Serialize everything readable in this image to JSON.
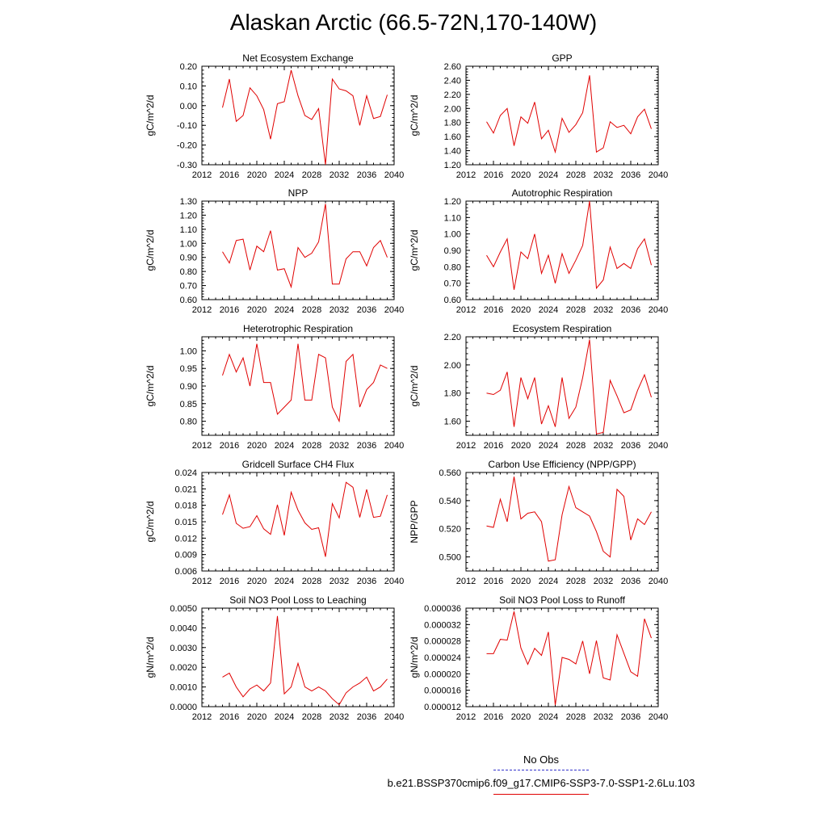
{
  "title": "Alaskan Arctic (66.5-72N,170-140W)",
  "legend": {
    "noobs_label": "No Obs",
    "run_label": "b.e21.BSSP370cmip6.f09_g17.CMIP6-SSP3-7.0-SSP1-2.6Lu.103",
    "noobs_color": "#3333cc",
    "run_color": "#e00000"
  },
  "chart_data": [
    {
      "type": "line",
      "title": "Net Ecosystem Exchange",
      "ylabel": "gC/m^2/d",
      "xlim": [
        2012,
        2040
      ],
      "ylim": [
        -0.3,
        0.2
      ],
      "xticks": [
        "2012",
        "2016",
        "2020",
        "2024",
        "2028",
        "2032",
        "2036",
        "2040"
      ],
      "yticks": [
        "-0.30",
        "-0.20",
        "-0.10",
        "0.00",
        "0.10",
        "0.20"
      ],
      "x": [
        2015,
        2016,
        2017,
        2018,
        2019,
        2020,
        2021,
        2022,
        2023,
        2024,
        2025,
        2026,
        2027,
        2028,
        2029,
        2030,
        2031,
        2032,
        2033,
        2034,
        2035,
        2036,
        2037,
        2038,
        2039
      ],
      "y": [
        -0.01,
        0.135,
        -0.08,
        -0.05,
        0.09,
        0.05,
        -0.02,
        -0.17,
        0.01,
        0.02,
        0.18,
        0.05,
        -0.05,
        -0.07,
        -0.015,
        -0.3,
        0.135,
        0.085,
        0.075,
        0.05,
        -0.1,
        0.05,
        -0.065,
        -0.055,
        0.055
      ]
    },
    {
      "type": "line",
      "title": "GPP",
      "ylabel": "gC/m^2/d",
      "xlim": [
        2012,
        2040
      ],
      "ylim": [
        1.2,
        2.6
      ],
      "xticks": [
        "2012",
        "2016",
        "2020",
        "2024",
        "2028",
        "2032",
        "2036",
        "2040"
      ],
      "yticks": [
        "1.20",
        "1.40",
        "1.60",
        "1.80",
        "2.00",
        "2.20",
        "2.40",
        "2.60"
      ],
      "x": [
        2015,
        2016,
        2017,
        2018,
        2019,
        2020,
        2021,
        2022,
        2023,
        2024,
        2025,
        2026,
        2027,
        2028,
        2029,
        2030,
        2031,
        2032,
        2033,
        2034,
        2035,
        2036,
        2037,
        2038,
        2039
      ],
      "y": [
        1.81,
        1.65,
        1.9,
        2.0,
        1.47,
        1.88,
        1.79,
        2.09,
        1.57,
        1.69,
        1.38,
        1.86,
        1.66,
        1.77,
        1.94,
        2.47,
        1.38,
        1.44,
        1.81,
        1.73,
        1.76,
        1.64,
        1.88,
        1.99,
        1.71
      ]
    },
    {
      "type": "line",
      "title": "NPP",
      "ylabel": "gC/m^2/d",
      "xlim": [
        2012,
        2040
      ],
      "ylim": [
        0.6,
        1.3
      ],
      "xticks": [
        "2012",
        "2016",
        "2020",
        "2024",
        "2028",
        "2032",
        "2036",
        "2040"
      ],
      "yticks": [
        "0.60",
        "0.70",
        "0.80",
        "0.90",
        "1.00",
        "1.10",
        "1.20",
        "1.30"
      ],
      "x": [
        2015,
        2016,
        2017,
        2018,
        2019,
        2020,
        2021,
        2022,
        2023,
        2024,
        2025,
        2026,
        2027,
        2028,
        2029,
        2030,
        2031,
        2032,
        2033,
        2034,
        2035,
        2036,
        2037,
        2038,
        2039
      ],
      "y": [
        0.94,
        0.86,
        1.02,
        1.03,
        0.81,
        0.98,
        0.94,
        1.09,
        0.81,
        0.82,
        0.69,
        0.97,
        0.9,
        0.93,
        1.01,
        1.28,
        0.71,
        0.71,
        0.89,
        0.94,
        0.94,
        0.84,
        0.97,
        1.02,
        0.9
      ]
    },
    {
      "type": "line",
      "title": "Autotrophic Respiration",
      "ylabel": "gC/m^2/d",
      "xlim": [
        2012,
        2040
      ],
      "ylim": [
        0.6,
        1.2
      ],
      "xticks": [
        "2012",
        "2016",
        "2020",
        "2024",
        "2028",
        "2032",
        "2036",
        "2040"
      ],
      "yticks": [
        "0.60",
        "0.70",
        "0.80",
        "0.90",
        "1.00",
        "1.10",
        "1.20"
      ],
      "x": [
        2015,
        2016,
        2017,
        2018,
        2019,
        2020,
        2021,
        2022,
        2023,
        2024,
        2025,
        2026,
        2027,
        2028,
        2029,
        2030,
        2031,
        2032,
        2033,
        2034,
        2035,
        2036,
        2037,
        2038,
        2039
      ],
      "y": [
        0.87,
        0.8,
        0.89,
        0.97,
        0.66,
        0.89,
        0.85,
        1.0,
        0.76,
        0.87,
        0.7,
        0.88,
        0.76,
        0.84,
        0.93,
        1.2,
        0.67,
        0.72,
        0.92,
        0.79,
        0.82,
        0.79,
        0.91,
        0.97,
        0.81
      ]
    },
    {
      "type": "line",
      "title": "Heterotrophic Respiration",
      "ylabel": "gC/m^2/d",
      "xlim": [
        2012,
        2040
      ],
      "ylim": [
        0.76,
        1.04
      ],
      "xticks": [
        "2012",
        "2016",
        "2020",
        "2024",
        "2028",
        "2032",
        "2036",
        "2040"
      ],
      "yticks": [
        "0.80",
        "0.85",
        "0.90",
        "0.95",
        "1.00"
      ],
      "x": [
        2015,
        2016,
        2017,
        2018,
        2019,
        2020,
        2021,
        2022,
        2023,
        2024,
        2025,
        2026,
        2027,
        2028,
        2029,
        2030,
        2031,
        2032,
        2033,
        2034,
        2035,
        2036,
        2037,
        2038,
        2039
      ],
      "y": [
        0.93,
        0.99,
        0.94,
        0.98,
        0.9,
        1.02,
        0.91,
        0.91,
        0.82,
        0.84,
        0.86,
        1.02,
        0.86,
        0.86,
        0.99,
        0.98,
        0.84,
        0.8,
        0.97,
        0.99,
        0.84,
        0.89,
        0.91,
        0.96,
        0.95
      ]
    },
    {
      "type": "line",
      "title": "Ecosystem Respiration",
      "ylabel": "gC/m^2/d",
      "xlim": [
        2012,
        2040
      ],
      "ylim": [
        1.5,
        2.2
      ],
      "xticks": [
        "2012",
        "2016",
        "2020",
        "2024",
        "2028",
        "2032",
        "2036",
        "2040"
      ],
      "yticks": [
        "1.60",
        "1.80",
        "2.00",
        "2.20"
      ],
      "x": [
        2015,
        2016,
        2017,
        2018,
        2019,
        2020,
        2021,
        2022,
        2023,
        2024,
        2025,
        2026,
        2027,
        2028,
        2029,
        2030,
        2031,
        2032,
        2033,
        2034,
        2035,
        2036,
        2037,
        2038,
        2039
      ],
      "y": [
        1.8,
        1.79,
        1.82,
        1.95,
        1.56,
        1.91,
        1.76,
        1.91,
        1.58,
        1.71,
        1.56,
        1.91,
        1.62,
        1.7,
        1.91,
        2.18,
        1.51,
        1.52,
        1.89,
        1.78,
        1.66,
        1.68,
        1.82,
        1.93,
        1.77
      ]
    },
    {
      "type": "line",
      "title": "Gridcell Surface CH4 Flux",
      "ylabel": "gC/m^2/d",
      "xlim": [
        2012,
        2040
      ],
      "ylim": [
        0.006,
        0.024
      ],
      "xticks": [
        "2012",
        "2016",
        "2020",
        "2024",
        "2028",
        "2032",
        "2036",
        "2040"
      ],
      "yticks": [
        "0.006",
        "0.009",
        "0.012",
        "0.015",
        "0.018",
        "0.021",
        "0.024"
      ],
      "x": [
        2015,
        2016,
        2017,
        2018,
        2019,
        2020,
        2021,
        2022,
        2023,
        2024,
        2025,
        2026,
        2027,
        2028,
        2029,
        2030,
        2031,
        2032,
        2033,
        2034,
        2035,
        2036,
        2037,
        2038,
        2039
      ],
      "y": [
        0.0163,
        0.0199,
        0.0147,
        0.0138,
        0.0141,
        0.0161,
        0.0137,
        0.0127,
        0.0181,
        0.0125,
        0.0204,
        0.0171,
        0.0148,
        0.0136,
        0.0139,
        0.0086,
        0.0183,
        0.0157,
        0.0222,
        0.0213,
        0.0158,
        0.0209,
        0.0158,
        0.016,
        0.0199
      ]
    },
    {
      "type": "line",
      "title": "Carbon Use Efficiency (NPP/GPP)",
      "ylabel": "NPP/GPP",
      "xlim": [
        2012,
        2040
      ],
      "ylim": [
        0.49,
        0.56
      ],
      "xticks": [
        "2012",
        "2016",
        "2020",
        "2024",
        "2028",
        "2032",
        "2036",
        "2040"
      ],
      "yticks": [
        "0.500",
        "0.520",
        "0.540",
        "0.560"
      ],
      "x": [
        2015,
        2016,
        2017,
        2018,
        2019,
        2020,
        2021,
        2022,
        2023,
        2024,
        2025,
        2026,
        2027,
        2028,
        2029,
        2030,
        2031,
        2032,
        2033,
        2034,
        2035,
        2036,
        2037,
        2038,
        2039
      ],
      "y": [
        0.522,
        0.521,
        0.541,
        0.525,
        0.557,
        0.527,
        0.531,
        0.532,
        0.525,
        0.497,
        0.498,
        0.53,
        0.55,
        0.535,
        0.532,
        0.529,
        0.518,
        0.504,
        0.5,
        0.548,
        0.543,
        0.512,
        0.527,
        0.523,
        0.532
      ]
    },
    {
      "type": "line",
      "title": "Soil NO3 Pool Loss to Leaching",
      "ylabel": "gN/m^2/d",
      "xlim": [
        2012,
        2040
      ],
      "ylim": [
        0.0,
        0.005
      ],
      "xticks": [
        "2012",
        "2016",
        "2020",
        "2024",
        "2028",
        "2032",
        "2036",
        "2040"
      ],
      "yticks": [
        "0.0000",
        "0.0010",
        "0.0020",
        "0.0030",
        "0.0040",
        "0.0050"
      ],
      "x": [
        2015,
        2016,
        2017,
        2018,
        2019,
        2020,
        2021,
        2022,
        2023,
        2024,
        2025,
        2026,
        2027,
        2028,
        2029,
        2030,
        2031,
        2032,
        2033,
        2034,
        2035,
        2036,
        2037,
        2038,
        2039
      ],
      "y": [
        0.0015,
        0.0017,
        0.001,
        0.0005,
        0.0009,
        0.0011,
        0.0008,
        0.0012,
        0.0046,
        0.00065,
        0.001,
        0.0022,
        0.001,
        0.0008,
        0.001,
        0.0008,
        0.0004,
        0.0001,
        0.0007,
        0.001,
        0.0012,
        0.0015,
        0.0008,
        0.001,
        0.0014
      ]
    },
    {
      "type": "line",
      "title": "Soil NO3 Pool Loss to Runoff",
      "ylabel": "gN/m^2/d",
      "xlim": [
        2012,
        2040
      ],
      "ylim": [
        1.2e-05,
        3.6e-05
      ],
      "xticks": [
        "2012",
        "2016",
        "2020",
        "2024",
        "2028",
        "2032",
        "2036",
        "2040"
      ],
      "yticks": [
        "0.000012",
        "0.000016",
        "0.000020",
        "0.000024",
        "0.000028",
        "0.000032",
        "0.000036"
      ],
      "x": [
        2015,
        2016,
        2017,
        2018,
        2019,
        2020,
        2021,
        2022,
        2023,
        2024,
        2025,
        2026,
        2027,
        2028,
        2029,
        2030,
        2031,
        2032,
        2033,
        2034,
        2035,
        2036,
        2037,
        2038,
        2039
      ],
      "y": [
        2.49e-05,
        2.49e-05,
        2.84e-05,
        2.82e-05,
        3.52e-05,
        2.63e-05,
        2.23e-05,
        2.62e-05,
        2.45e-05,
        3.02e-05,
        1.24e-05,
        2.4e-05,
        2.35e-05,
        2.24e-05,
        2.8e-05,
        2e-05,
        2.81e-05,
        1.9e-05,
        1.85e-05,
        2.95e-05,
        2.5e-05,
        2.05e-05,
        1.94e-05,
        3.34e-05,
        2.87e-05
      ]
    }
  ]
}
